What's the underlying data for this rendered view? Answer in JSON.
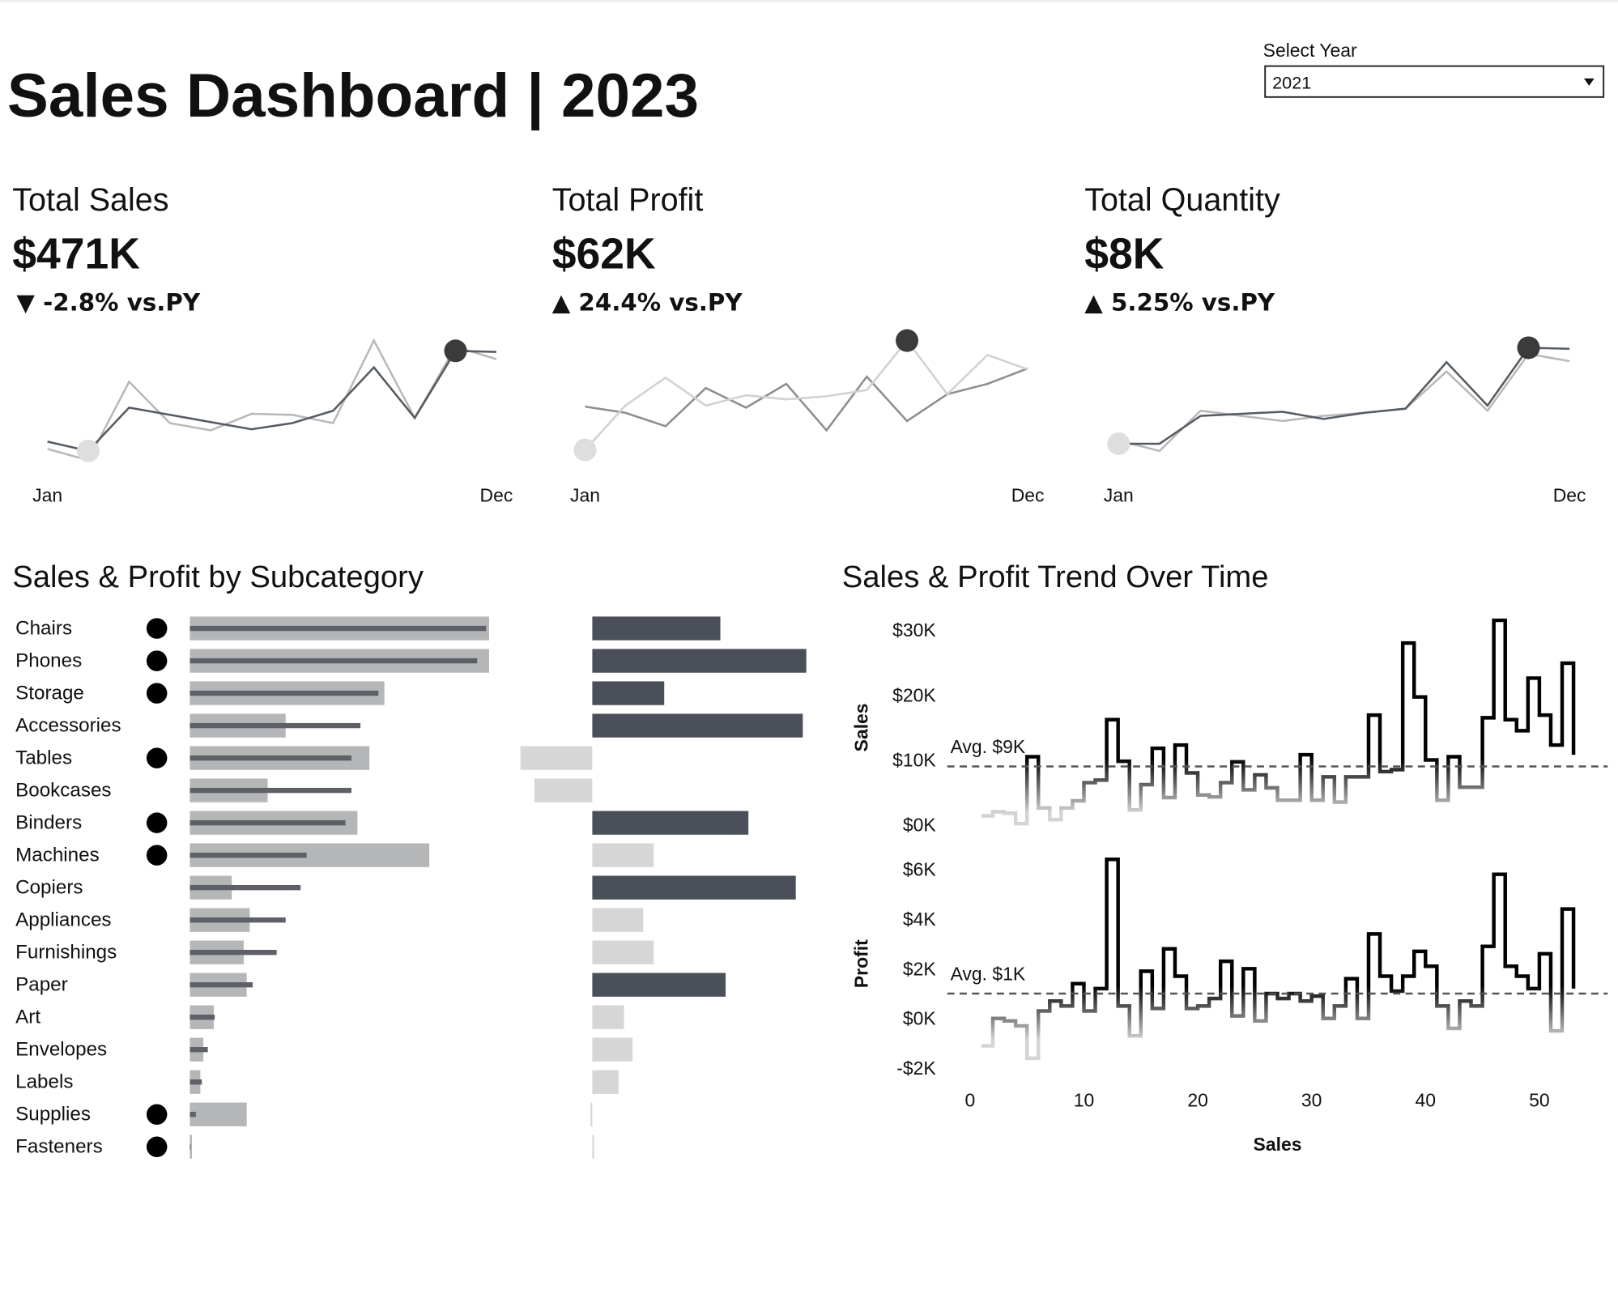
{
  "header": {
    "title": "Sales Dashboard | 2023",
    "select_label": "Select Year",
    "select_value": "2021"
  },
  "kpis": [
    {
      "label": "Total Sales",
      "value": "$471K",
      "change": "▼ -2.8% vs.PY"
    },
    {
      "label": "Total Profit",
      "value": "$62K",
      "change": "▲ 24.4% vs.PY"
    },
    {
      "label": "Total Quantity",
      "value": "$8K",
      "change": "▲ 5.25% vs.PY"
    }
  ],
  "chart_data": [
    {
      "type": "line",
      "categories": [
        "Jan",
        null,
        null,
        null,
        null,
        null,
        null,
        null,
        null,
        null,
        null,
        "Dec"
      ],
      "ylim": [
        20,
        145
      ],
      "max_color": "#3b3b3b",
      "min_color": "#dedede",
      "series": [
        {
          "color": "#555b63",
          "values": [
            42,
            33,
            75,
            68,
            61,
            54,
            60,
            72,
            114,
            65,
            130,
            129
          ]
        },
        {
          "color": "#b9b9b9",
          "values": [
            35,
            24,
            100,
            60,
            53,
            69,
            68,
            60,
            140,
            65,
            134,
            122
          ]
        }
      ]
    },
    {
      "type": "line",
      "categories": [
        "Jan",
        null,
        null,
        null,
        null,
        null,
        null,
        null,
        null,
        null,
        null,
        "Dec"
      ],
      "ylim": [
        20,
        145
      ],
      "max_color": "#3b3b3b",
      "min_color": "#dedede",
      "series": [
        {
          "color": "#d2d2d2",
          "values": [
            34,
            77,
            104,
            77,
            87,
            83,
            86,
            92,
            140,
            88,
            126,
            112
          ]
        },
        {
          "color": "#8e8e8e",
          "values": [
            76,
            70,
            57,
            94,
            75,
            98,
            53,
            105,
            62,
            88,
            98,
            113
          ]
        }
      ]
    },
    {
      "type": "line",
      "categories": [
        "Jan",
        null,
        null,
        null,
        null,
        null,
        null,
        null,
        null,
        null,
        null,
        "Dec"
      ],
      "ylim": [
        20,
        145
      ],
      "max_color": "#3b3b3b",
      "min_color": "#dedede",
      "series": [
        {
          "color": "#555b63",
          "values": [
            40,
            40,
            67,
            69,
            71,
            64,
            70,
            74,
            119,
            77,
            133,
            132
          ]
        },
        {
          "color": "#b9b9b9",
          "values": [
            43,
            33,
            72,
            67,
            62,
            67,
            70,
            74,
            110,
            72,
            127,
            120
          ]
        }
      ]
    },
    {
      "type": "bar",
      "orientation": "horizontal",
      "title": "Sales & Profit by Subcategory",
      "categories": [
        "Chairs",
        "Phones",
        "Storage",
        "Accessories",
        "Tables",
        "Bookcases",
        "Binders",
        "Machines",
        "Copiers",
        "Appliances",
        "Furnishings",
        "Paper",
        "Art",
        "Envelopes",
        "Labels",
        "Supplies",
        "Fasteners"
      ],
      "xlim": [
        0,
        110
      ],
      "dot_color": "#000000",
      "series": [
        {
          "color": "#b5b6b8",
          "values": [
            100,
            100,
            65,
            32,
            60,
            26,
            56,
            80,
            14,
            20,
            18,
            19,
            8,
            4.5,
            3.5,
            19,
            0.7
          ]
        },
        {
          "color": "#5d6066",
          "values": [
            99,
            96,
            63,
            57,
            54,
            54,
            52,
            39,
            37,
            32,
            29,
            21,
            8.3,
            6,
            4,
            2,
            0.3
          ]
        }
      ]
    },
    {
      "type": "bar",
      "orientation": "horizontal",
      "xlim": [
        -5,
        14
      ],
      "values": [
        7.3,
        12.2,
        4.1,
        12.0,
        -4.1,
        -3.3,
        8.9,
        3.5,
        11.6,
        2.9,
        3.5,
        7.6,
        1.8,
        2.3,
        1.5,
        -0.1,
        0.1
      ],
      "colors": [
        "#4a4f5a",
        "#4a4f5a",
        "#4a4f5a",
        "#4a4f5a",
        "#d6d6d6",
        "#d6d6d6",
        "#4a4f5a",
        "#d6d6d6",
        "#4a4f5a",
        "#d6d6d6",
        "#d6d6d6",
        "#4a4f5a",
        "#d6d6d6",
        "#d6d6d6",
        "#d6d6d6",
        "#d6d6d6",
        "#d6d6d6"
      ]
    },
    {
      "type": "step",
      "title": "Sales & Profit Trend Over Time",
      "ylabel": "Sales",
      "x": [
        1,
        2,
        3,
        4,
        5,
        6,
        7,
        8,
        9,
        10,
        11,
        12,
        13,
        14,
        15,
        16,
        17,
        18,
        19,
        20,
        21,
        22,
        23,
        24,
        25,
        26,
        27,
        28,
        29,
        30,
        31,
        32,
        33,
        34,
        35,
        36,
        37,
        38,
        39,
        40,
        41,
        42,
        43,
        44,
        45,
        46,
        47,
        48,
        49,
        50,
        51,
        52,
        53
      ],
      "xlim": [
        -2,
        56
      ],
      "ylim": [
        -2,
        32
      ],
      "yticks": [
        {
          "value": 0,
          "label": "$0K"
        },
        {
          "value": 10,
          "label": "$10K"
        },
        {
          "value": 20,
          "label": "$20K"
        },
        {
          "value": 30,
          "label": "$30K"
        }
      ],
      "average": 9,
      "average_label": "Avg. $9K",
      "color": "#000000",
      "faded_color": "#d4d4d4",
      "series": [
        {
          "values": [
            1.4,
            2.0,
            1.8,
            0.2,
            10.5,
            2.6,
            0.8,
            2.6,
            3.7,
            6.5,
            6.9,
            16.2,
            9.8,
            2.3,
            6.2,
            11.8,
            4.2,
            12.3,
            8.0,
            4.6,
            4.3,
            6.5,
            9.7,
            5.4,
            7.7,
            5.7,
            3.8,
            3.8,
            10.8,
            3.8,
            7.4,
            3.5,
            7.4,
            7.4,
            16.9,
            8.2,
            8.5,
            28.0,
            19.7,
            10.0,
            3.8,
            10.5,
            5.8,
            5.8,
            16.5,
            31.5,
            16.2,
            14.5,
            22.6,
            16.9,
            12.3,
            24.9,
            10.8
          ]
        }
      ]
    },
    {
      "type": "step",
      "ylabel": "Profit",
      "xlabel": "Sales",
      "x": [
        1,
        2,
        3,
        4,
        5,
        6,
        7,
        8,
        9,
        10,
        11,
        12,
        13,
        14,
        15,
        16,
        17,
        18,
        19,
        20,
        21,
        22,
        23,
        24,
        25,
        26,
        27,
        28,
        29,
        30,
        31,
        32,
        33,
        34,
        35,
        36,
        37,
        38,
        39,
        40,
        41,
        42,
        43,
        44,
        45,
        46,
        47,
        48,
        49,
        50,
        51,
        52,
        53
      ],
      "xlim": [
        -2,
        56
      ],
      "xticks": [
        0,
        10,
        20,
        30,
        40,
        50
      ],
      "ylim": [
        -2.2,
        6.6
      ],
      "yticks": [
        {
          "value": -2,
          "label": "-$2K"
        },
        {
          "value": 0,
          "label": "$0K"
        },
        {
          "value": 2,
          "label": "$2K"
        },
        {
          "value": 4,
          "label": "$4K"
        },
        {
          "value": 6,
          "label": "$6K"
        }
      ],
      "average": 1,
      "average_label": "Avg. $1K",
      "color": "#000000",
      "faded_color": "#d4d4d4",
      "series": [
        {
          "values": [
            -1.1,
            0,
            -0.1,
            -0.3,
            -1.6,
            0.3,
            0.7,
            0.5,
            1.4,
            0.3,
            1.2,
            6.4,
            0.5,
            -0.7,
            1.9,
            0.4,
            2.8,
            1.7,
            0.4,
            0.5,
            0.8,
            2.3,
            0.1,
            2.0,
            -0.1,
            1.0,
            0.8,
            1.0,
            0.7,
            0.9,
            0,
            0.5,
            1.6,
            0,
            3.4,
            1.7,
            1.1,
            1.7,
            2.7,
            2.1,
            0.5,
            -0.4,
            0.7,
            0.5,
            2.9,
            5.8,
            2.1,
            1.7,
            1.2,
            2.6,
            -0.5,
            4.4,
            1.2
          ]
        }
      ]
    }
  ]
}
